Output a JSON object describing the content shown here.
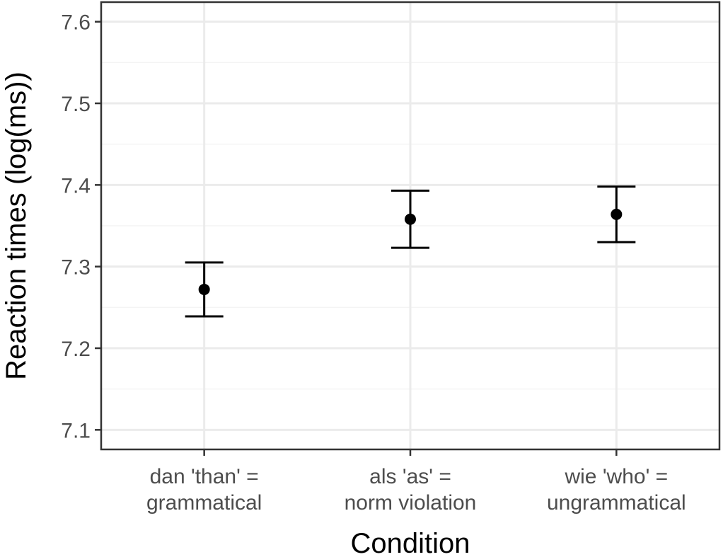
{
  "chart_data": {
    "type": "scatter",
    "title": "",
    "xlabel": "Condition",
    "ylabel": "Reaction times (log(ms))",
    "categories": [
      [
        "dan 'than' =",
        "grammatical"
      ],
      [
        "als 'as' =",
        "norm violation"
      ],
      [
        "wie 'who' =",
        "ungrammatical"
      ]
    ],
    "series": [
      {
        "values": [
          7.272,
          7.358,
          7.364
        ],
        "error_low": [
          7.239,
          7.323,
          7.33
        ],
        "error_high": [
          7.305,
          7.393,
          7.398
        ]
      }
    ],
    "ylim": [
      7.076,
      7.624
    ],
    "yticks": [
      7.1,
      7.2,
      7.3,
      7.4,
      7.5,
      7.6
    ],
    "ytick_labels": [
      "7.1",
      "7.2",
      "7.3",
      "7.4",
      "7.5",
      "7.6"
    ],
    "grid": true,
    "legend": "none"
  },
  "colors": {
    "panel_border": "#333333",
    "grid_major": "#ebebeb",
    "grid_minor": "#f4f4f4",
    "marks": "#000000",
    "tick_text": "#4d4d4d"
  }
}
